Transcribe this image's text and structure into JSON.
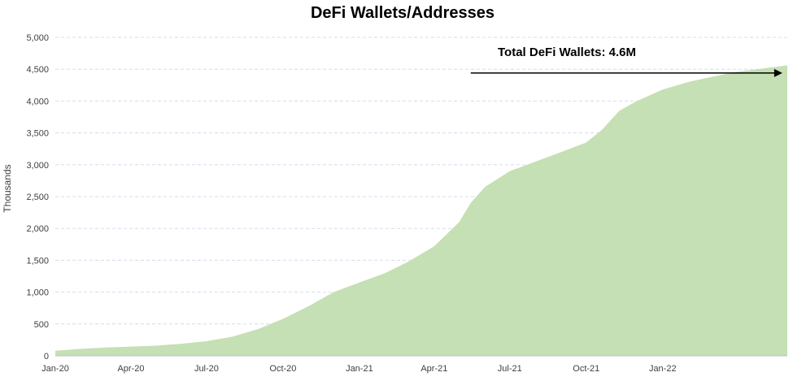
{
  "chart_data": {
    "type": "area",
    "title": "DeFi Wallets/Addresses",
    "xlabel": "",
    "ylabel": "Thousands",
    "x_tick_labels": [
      "Jan-20",
      "Apr-20",
      "Jul-20",
      "Oct-20",
      "Jan-21",
      "Apr-21",
      "Jul-21",
      "Oct-21",
      "Jan-22"
    ],
    "x_tick_dates": [
      "2020-01-01",
      "2020-04-01",
      "2020-07-01",
      "2020-10-01",
      "2021-01-01",
      "2021-04-01",
      "2021-07-01",
      "2021-10-01",
      "2022-01-01"
    ],
    "x_range": [
      "2020-01-01",
      "2022-05-31"
    ],
    "y_tick_labels": [
      "0",
      "500",
      "1,000",
      "1,500",
      "2,000",
      "2,500",
      "3,000",
      "3,500",
      "4,000",
      "4,500",
      "5,000"
    ],
    "y_ticks": [
      0,
      500,
      1000,
      1500,
      2000,
      2500,
      3000,
      3500,
      4000,
      4500,
      5000
    ],
    "ylim": [
      0,
      5000
    ],
    "grid": true,
    "series": [
      {
        "name": "",
        "color": "#c5e0b4",
        "points": [
          {
            "x": "2020-01-01",
            "y": 80
          },
          {
            "x": "2020-02-01",
            "y": 110
          },
          {
            "x": "2020-03-01",
            "y": 130
          },
          {
            "x": "2020-04-01",
            "y": 145
          },
          {
            "x": "2020-05-01",
            "y": 160
          },
          {
            "x": "2020-06-01",
            "y": 190
          },
          {
            "x": "2020-07-01",
            "y": 230
          },
          {
            "x": "2020-08-01",
            "y": 300
          },
          {
            "x": "2020-09-01",
            "y": 420
          },
          {
            "x": "2020-10-01",
            "y": 580
          },
          {
            "x": "2020-11-01",
            "y": 780
          },
          {
            "x": "2020-12-01",
            "y": 1000
          },
          {
            "x": "2021-01-01",
            "y": 1150
          },
          {
            "x": "2021-02-01",
            "y": 1300
          },
          {
            "x": "2021-03-01",
            "y": 1480
          },
          {
            "x": "2021-04-01",
            "y": 1720
          },
          {
            "x": "2021-05-01",
            "y": 2100
          },
          {
            "x": "2021-05-15",
            "y": 2400
          },
          {
            "x": "2021-06-01",
            "y": 2650
          },
          {
            "x": "2021-07-01",
            "y": 2900
          },
          {
            "x": "2021-08-01",
            "y": 3050
          },
          {
            "x": "2021-09-01",
            "y": 3200
          },
          {
            "x": "2021-10-01",
            "y": 3350
          },
          {
            "x": "2021-10-20",
            "y": 3550
          },
          {
            "x": "2021-11-10",
            "y": 3850
          },
          {
            "x": "2021-12-01",
            "y": 4000
          },
          {
            "x": "2022-01-01",
            "y": 4180
          },
          {
            "x": "2022-02-01",
            "y": 4300
          },
          {
            "x": "2022-03-01",
            "y": 4380
          },
          {
            "x": "2022-04-01",
            "y": 4460
          },
          {
            "x": "2022-05-31",
            "y": 4560
          }
        ]
      }
    ],
    "annotations": [
      {
        "text": "Total DeFi Wallets: 4.6M",
        "arrow_from": {
          "x": "2021-05-15",
          "y": 4440
        },
        "arrow_to": {
          "x": "2022-05-25",
          "y": 4440
        }
      }
    ]
  },
  "colors": {
    "area": "#c5e0b4",
    "gridline": "#d6dcef",
    "axis": "#bfbfbf",
    "text": "#404040",
    "title": "#000000",
    "arrow": "#000000"
  }
}
